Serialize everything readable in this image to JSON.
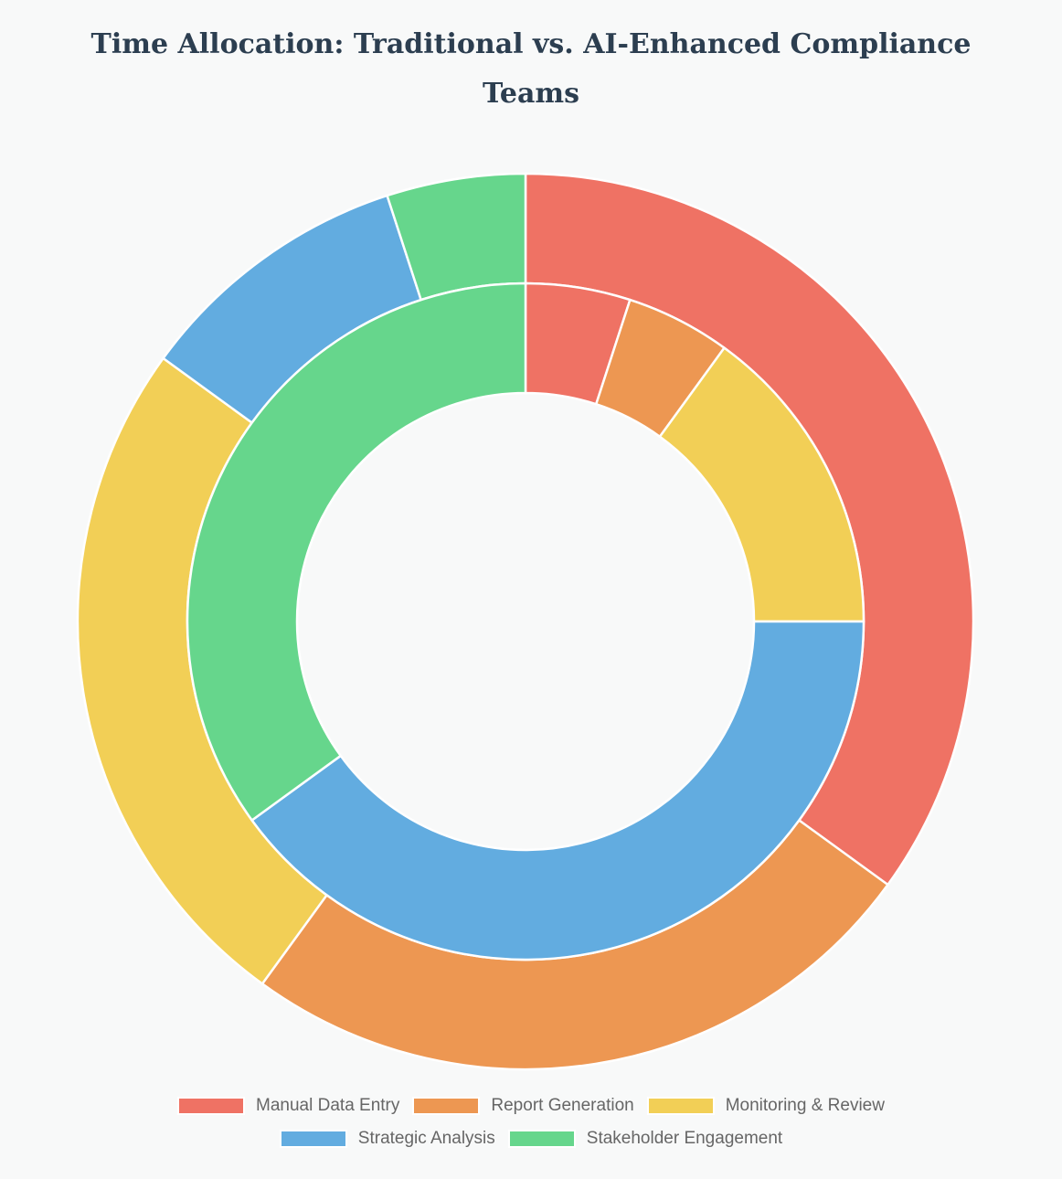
{
  "chart_data": {
    "type": "doughnut",
    "title": [
      "Time Allocation: Traditional vs. AI-Enhanced Compliance",
      "Teams"
    ],
    "categories": [
      "Manual Data Entry",
      "Report Generation",
      "Monitoring & Review",
      "Strategic Analysis",
      "Stakeholder Engagement"
    ],
    "colors": [
      "#ef7264",
      "#ed9752",
      "#f2cf56",
      "#62ace0",
      "#66d68c"
    ],
    "series": [
      {
        "ring": "outer",
        "values": [
          35,
          25,
          25,
          10,
          5
        ]
      },
      {
        "ring": "inner",
        "values": [
          5,
          5,
          15,
          40,
          35
        ]
      }
    ],
    "legend": "bottom"
  }
}
